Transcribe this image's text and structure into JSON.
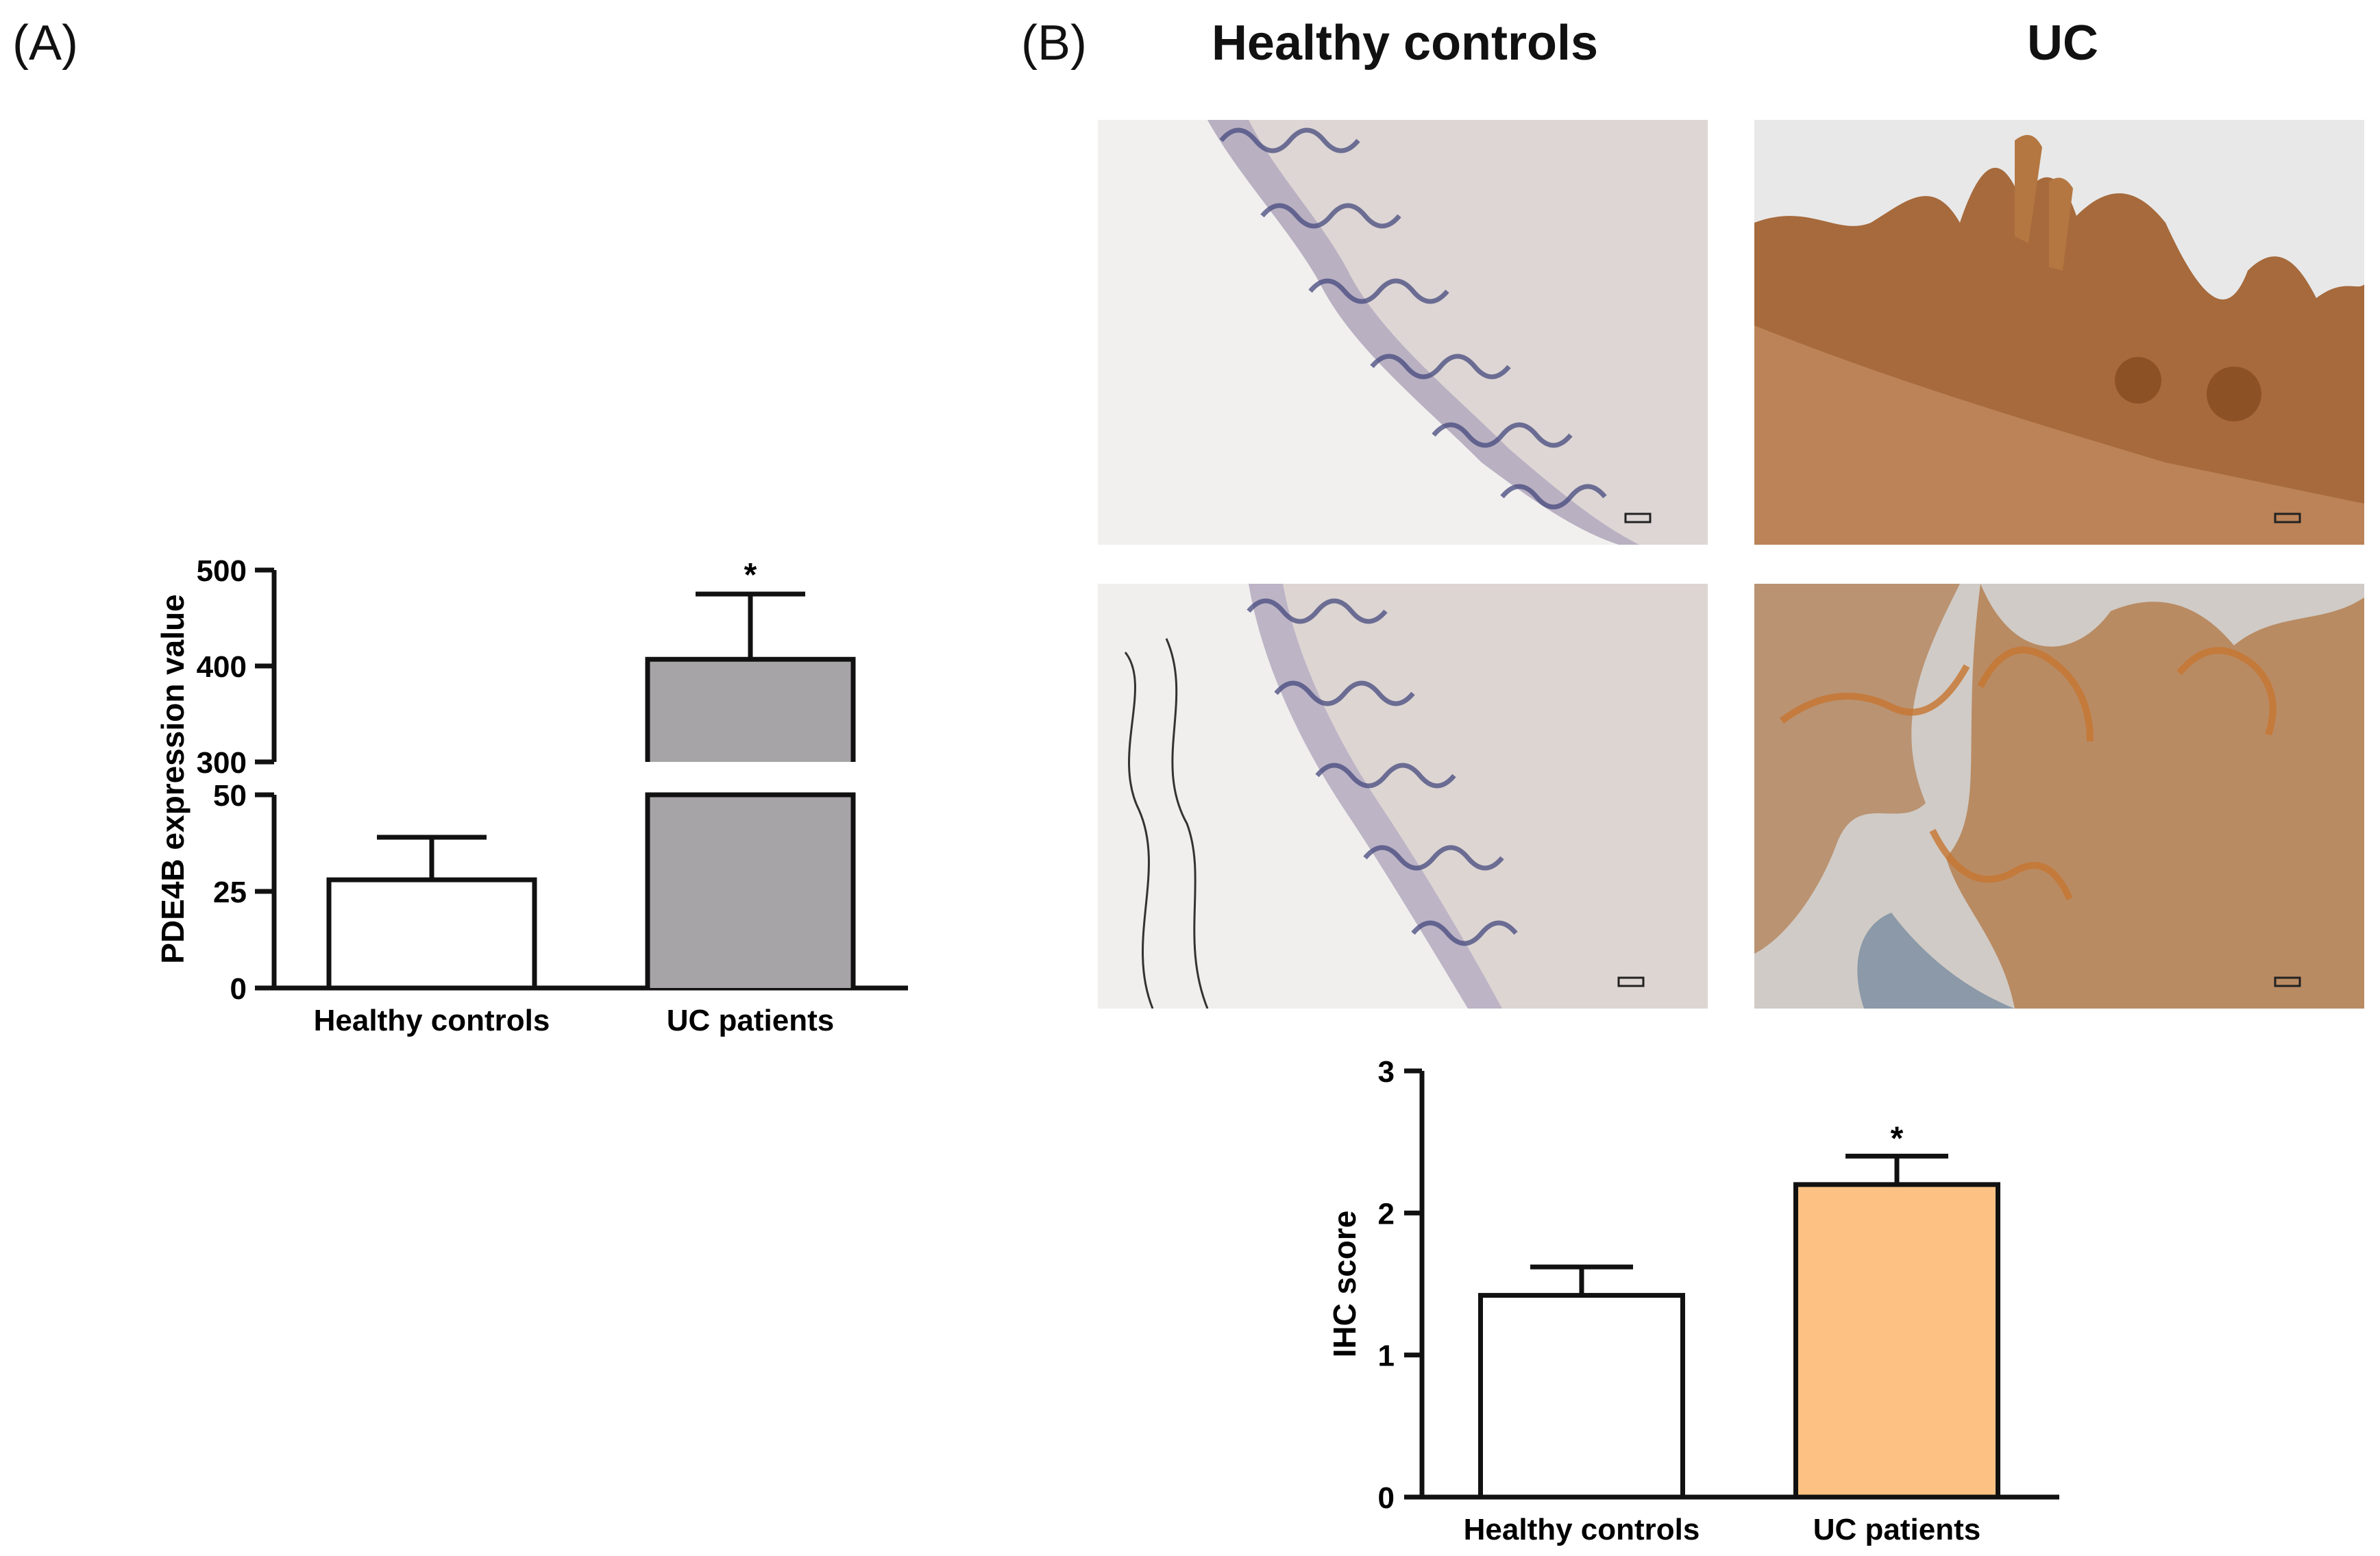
{
  "panels": {
    "a_label": "(A)",
    "b_label": "(B)"
  },
  "columns": {
    "left": "Healthy controls",
    "right": "UC"
  },
  "chart_data": [
    {
      "type": "bar",
      "panel": "A",
      "categories": [
        "Healthy controls",
        "UC patients"
      ],
      "values": [
        28,
        407
      ],
      "errors": [
        11,
        68
      ],
      "significance": [
        "",
        "*"
      ],
      "title": "",
      "xlabel": "",
      "ylabel": "PDE4B expression value",
      "axis_break": {
        "lower": [
          0,
          50
        ],
        "upper": [
          300,
          500
        ]
      },
      "yticks_lower": [
        0,
        25,
        50
      ],
      "yticks_upper": [
        300,
        400,
        500
      ],
      "colors": [
        "#ffffff",
        "#a6a4a7"
      ]
    },
    {
      "type": "bar",
      "panel": "B",
      "categories": [
        "Healthy controls",
        "UC patients"
      ],
      "values": [
        1.42,
        2.2
      ],
      "errors": [
        0.2,
        0.2
      ],
      "significance": [
        "",
        "*"
      ],
      "title": "",
      "xlabel": "",
      "ylabel": "IHC score",
      "ylim": [
        0,
        3
      ],
      "yticks": [
        0,
        1,
        2,
        3
      ],
      "colors": [
        "#ffffff",
        "#fdc283"
      ]
    }
  ],
  "images": [
    {
      "group": "Healthy controls",
      "stain": "light"
    },
    {
      "group": "UC",
      "stain": "brown"
    },
    {
      "group": "Healthy controls",
      "stain": "light"
    },
    {
      "group": "UC",
      "stain": "brown"
    }
  ]
}
